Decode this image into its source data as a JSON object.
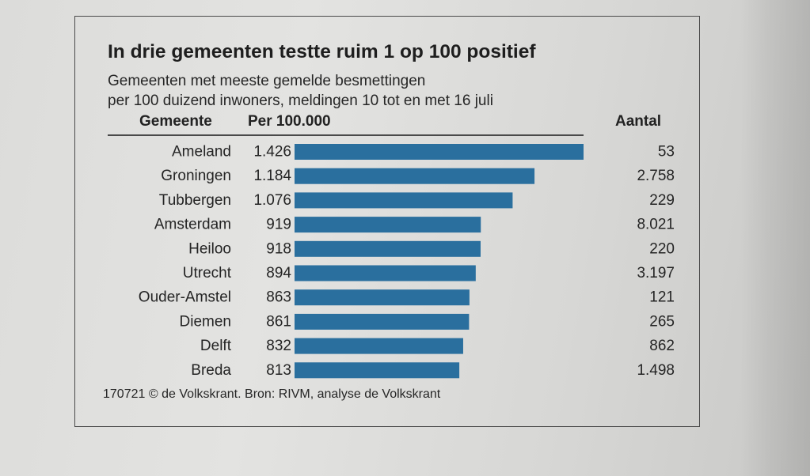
{
  "chart_data": {
    "type": "table",
    "title": "In drie gemeenten testte ruim 1 op 100 positief",
    "subtitle_lines": [
      "Gemeenten met meeste gemelde besmettingen",
      "per 100 duizend inwoners, meldingen 10 tot en met 16 juli"
    ],
    "columns": {
      "gemeente": "Gemeente",
      "per": "Per 100.000",
      "aantal": "Aantal"
    },
    "rows": [
      {
        "gemeente": "Ameland",
        "per_label": "1.426",
        "per": 1426,
        "aantal": "53"
      },
      {
        "gemeente": "Groningen",
        "per_label": "1.184",
        "per": 1184,
        "aantal": "2.758"
      },
      {
        "gemeente": "Tubbergen",
        "per_label": "1.076",
        "per": 1076,
        "aantal": "229"
      },
      {
        "gemeente": "Amsterdam",
        "per_label": "919",
        "per": 919,
        "aantal": "8.021"
      },
      {
        "gemeente": "Heiloo",
        "per_label": "918",
        "per": 918,
        "aantal": "220"
      },
      {
        "gemeente": "Utrecht",
        "per_label": "894",
        "per": 894,
        "aantal": "3.197"
      },
      {
        "gemeente": "Ouder-Amstel",
        "per_label": "863",
        "per": 863,
        "aantal": "121"
      },
      {
        "gemeente": "Diemen",
        "per_label": "861",
        "per": 861,
        "aantal": "265"
      },
      {
        "gemeente": "Delft",
        "per_label": "832",
        "per": 832,
        "aantal": "862"
      },
      {
        "gemeente": "Breda",
        "per_label": "813",
        "per": 813,
        "aantal": "1.498"
      }
    ],
    "bar_color": "#2a6f9e",
    "source": "170721 © de Volkskrant. Bron: RIVM, analyse de Volkskrant"
  }
}
